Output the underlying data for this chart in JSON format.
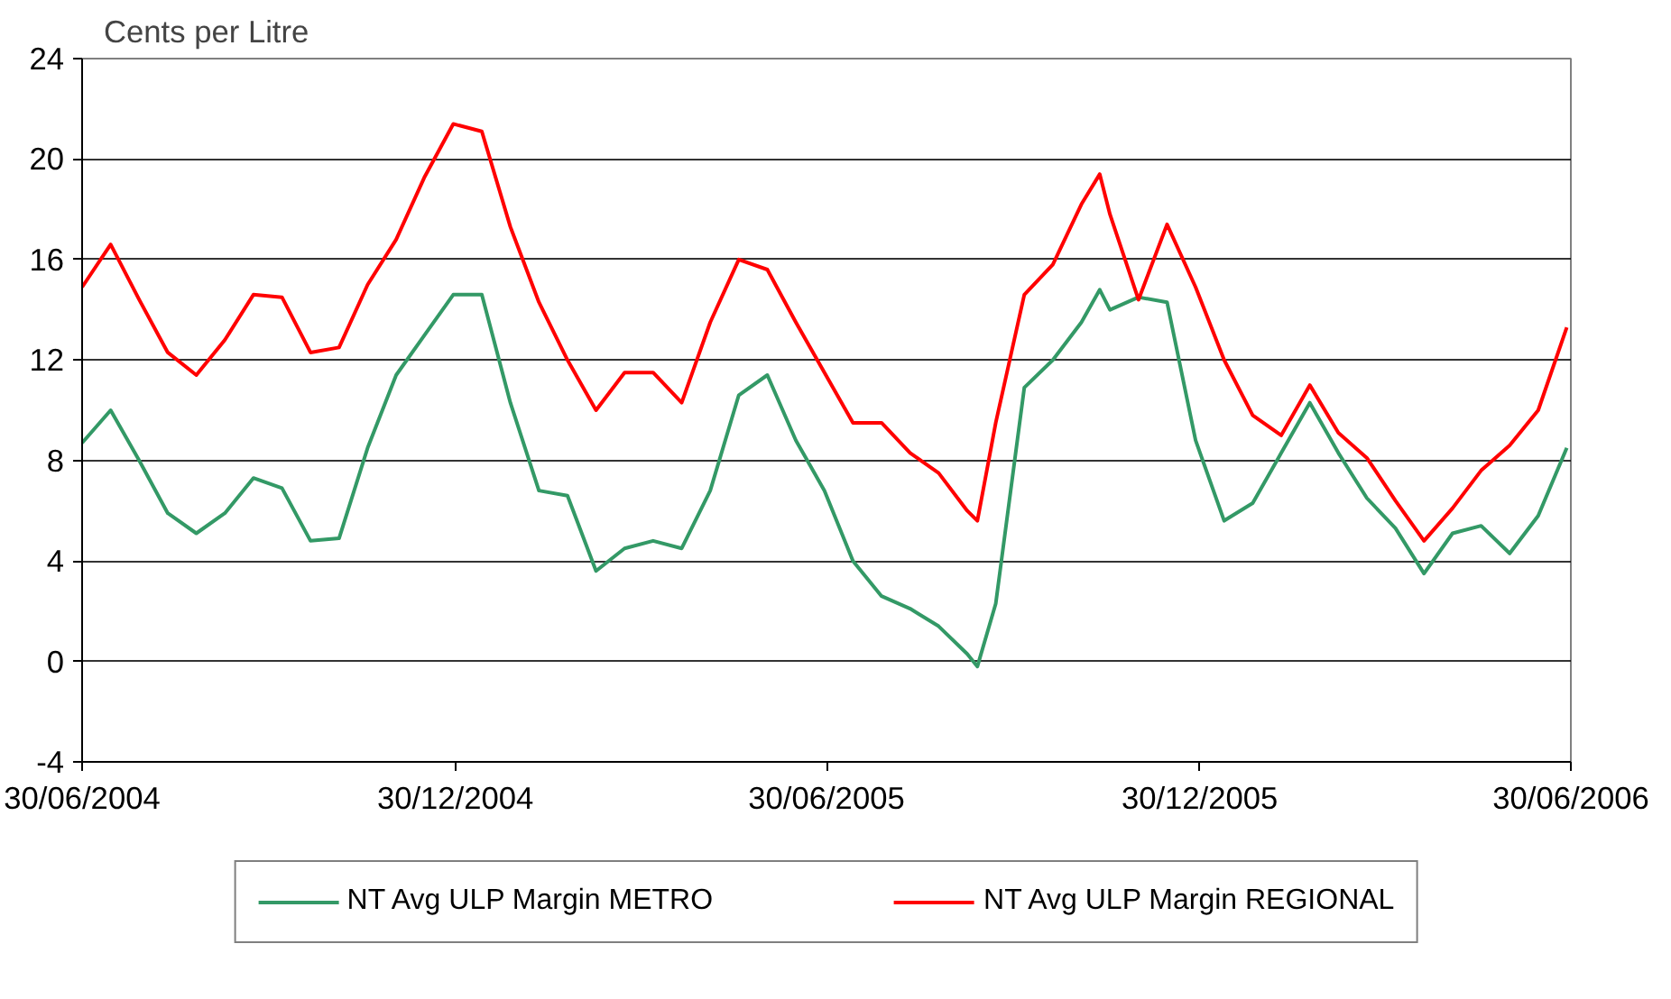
{
  "chart_data": {
    "type": "line",
    "ylabel": "Cents per Litre",
    "x": [
      "2004-06-30",
      "2004-07-14",
      "2004-07-28",
      "2004-08-11",
      "2004-08-25",
      "2004-09-08",
      "2004-09-22",
      "2004-10-06",
      "2004-10-20",
      "2004-11-03",
      "2004-11-17",
      "2004-12-01",
      "2004-12-15",
      "2004-12-29",
      "2005-01-12",
      "2005-01-26",
      "2005-02-09",
      "2005-02-23",
      "2005-03-09",
      "2005-03-23",
      "2005-04-06",
      "2005-04-20",
      "2005-05-04",
      "2005-05-18",
      "2005-06-01",
      "2005-06-15",
      "2005-06-29",
      "2005-07-13",
      "2005-07-27",
      "2005-08-10",
      "2005-08-24",
      "2005-09-07",
      "2005-09-12",
      "2005-09-21",
      "2005-10-05",
      "2005-10-19",
      "2005-11-02",
      "2005-11-11",
      "2005-11-16",
      "2005-11-30",
      "2005-12-14",
      "2005-12-28",
      "2006-01-11",
      "2006-01-25",
      "2006-02-08",
      "2006-02-22",
      "2006-03-08",
      "2006-03-22",
      "2006-04-05",
      "2006-04-19",
      "2006-05-03",
      "2006-05-17",
      "2006-05-31",
      "2006-06-14",
      "2006-06-28"
    ],
    "series": [
      {
        "name": "NT Avg ULP Margin METRO",
        "color": "#339966",
        "values": [
          8.7,
          10.0,
          8.0,
          5.9,
          5.1,
          5.9,
          7.3,
          6.9,
          4.8,
          4.9,
          8.5,
          11.4,
          13.0,
          14.6,
          14.6,
          10.3,
          6.8,
          6.6,
          3.6,
          4.5,
          4.8,
          4.5,
          6.8,
          10.6,
          11.4,
          8.8,
          6.8,
          4.0,
          2.6,
          2.1,
          1.4,
          0.3,
          -0.2,
          2.3,
          10.9,
          12.0,
          13.5,
          14.8,
          14.0,
          14.5,
          14.3,
          8.8,
          5.6,
          6.3,
          8.3,
          10.3,
          8.3,
          6.5,
          5.3,
          3.5,
          5.1,
          5.4,
          4.3,
          5.8,
          8.5
        ]
      },
      {
        "name": "NT Avg ULP Margin REGIONAL",
        "color": "#ff0000",
        "values": [
          14.9,
          16.6,
          14.4,
          12.3,
          11.4,
          12.8,
          14.6,
          14.5,
          12.3,
          12.5,
          15.0,
          16.8,
          19.3,
          21.4,
          21.1,
          17.3,
          14.3,
          12.0,
          10.0,
          11.5,
          11.5,
          10.3,
          13.5,
          16.0,
          15.6,
          13.5,
          11.5,
          9.5,
          9.5,
          8.3,
          7.5,
          6.0,
          5.6,
          9.5,
          14.6,
          15.8,
          18.2,
          19.4,
          17.8,
          14.4,
          17.4,
          14.9,
          12.0,
          9.8,
          9.0,
          11.0,
          9.1,
          8.1,
          6.4,
          4.8,
          6.1,
          7.6,
          8.6,
          10.0,
          13.3
        ]
      }
    ],
    "xlim": [
      "2004-06-30",
      "2006-06-30"
    ],
    "xticks": [
      {
        "value": "2004-06-30",
        "label": "30/06/2004"
      },
      {
        "value": "2004-12-30",
        "label": "30/12/2004"
      },
      {
        "value": "2005-06-30",
        "label": "30/06/2005"
      },
      {
        "value": "2005-12-30",
        "label": "30/12/2005"
      },
      {
        "value": "2006-06-30",
        "label": "30/06/2006"
      }
    ],
    "ylim": [
      -4,
      24
    ],
    "yticks": [
      -4,
      0,
      4,
      8,
      12,
      16,
      20,
      24
    ],
    "grid": "y",
    "legend": "bottom",
    "line_style": "solid",
    "marker": "none"
  }
}
